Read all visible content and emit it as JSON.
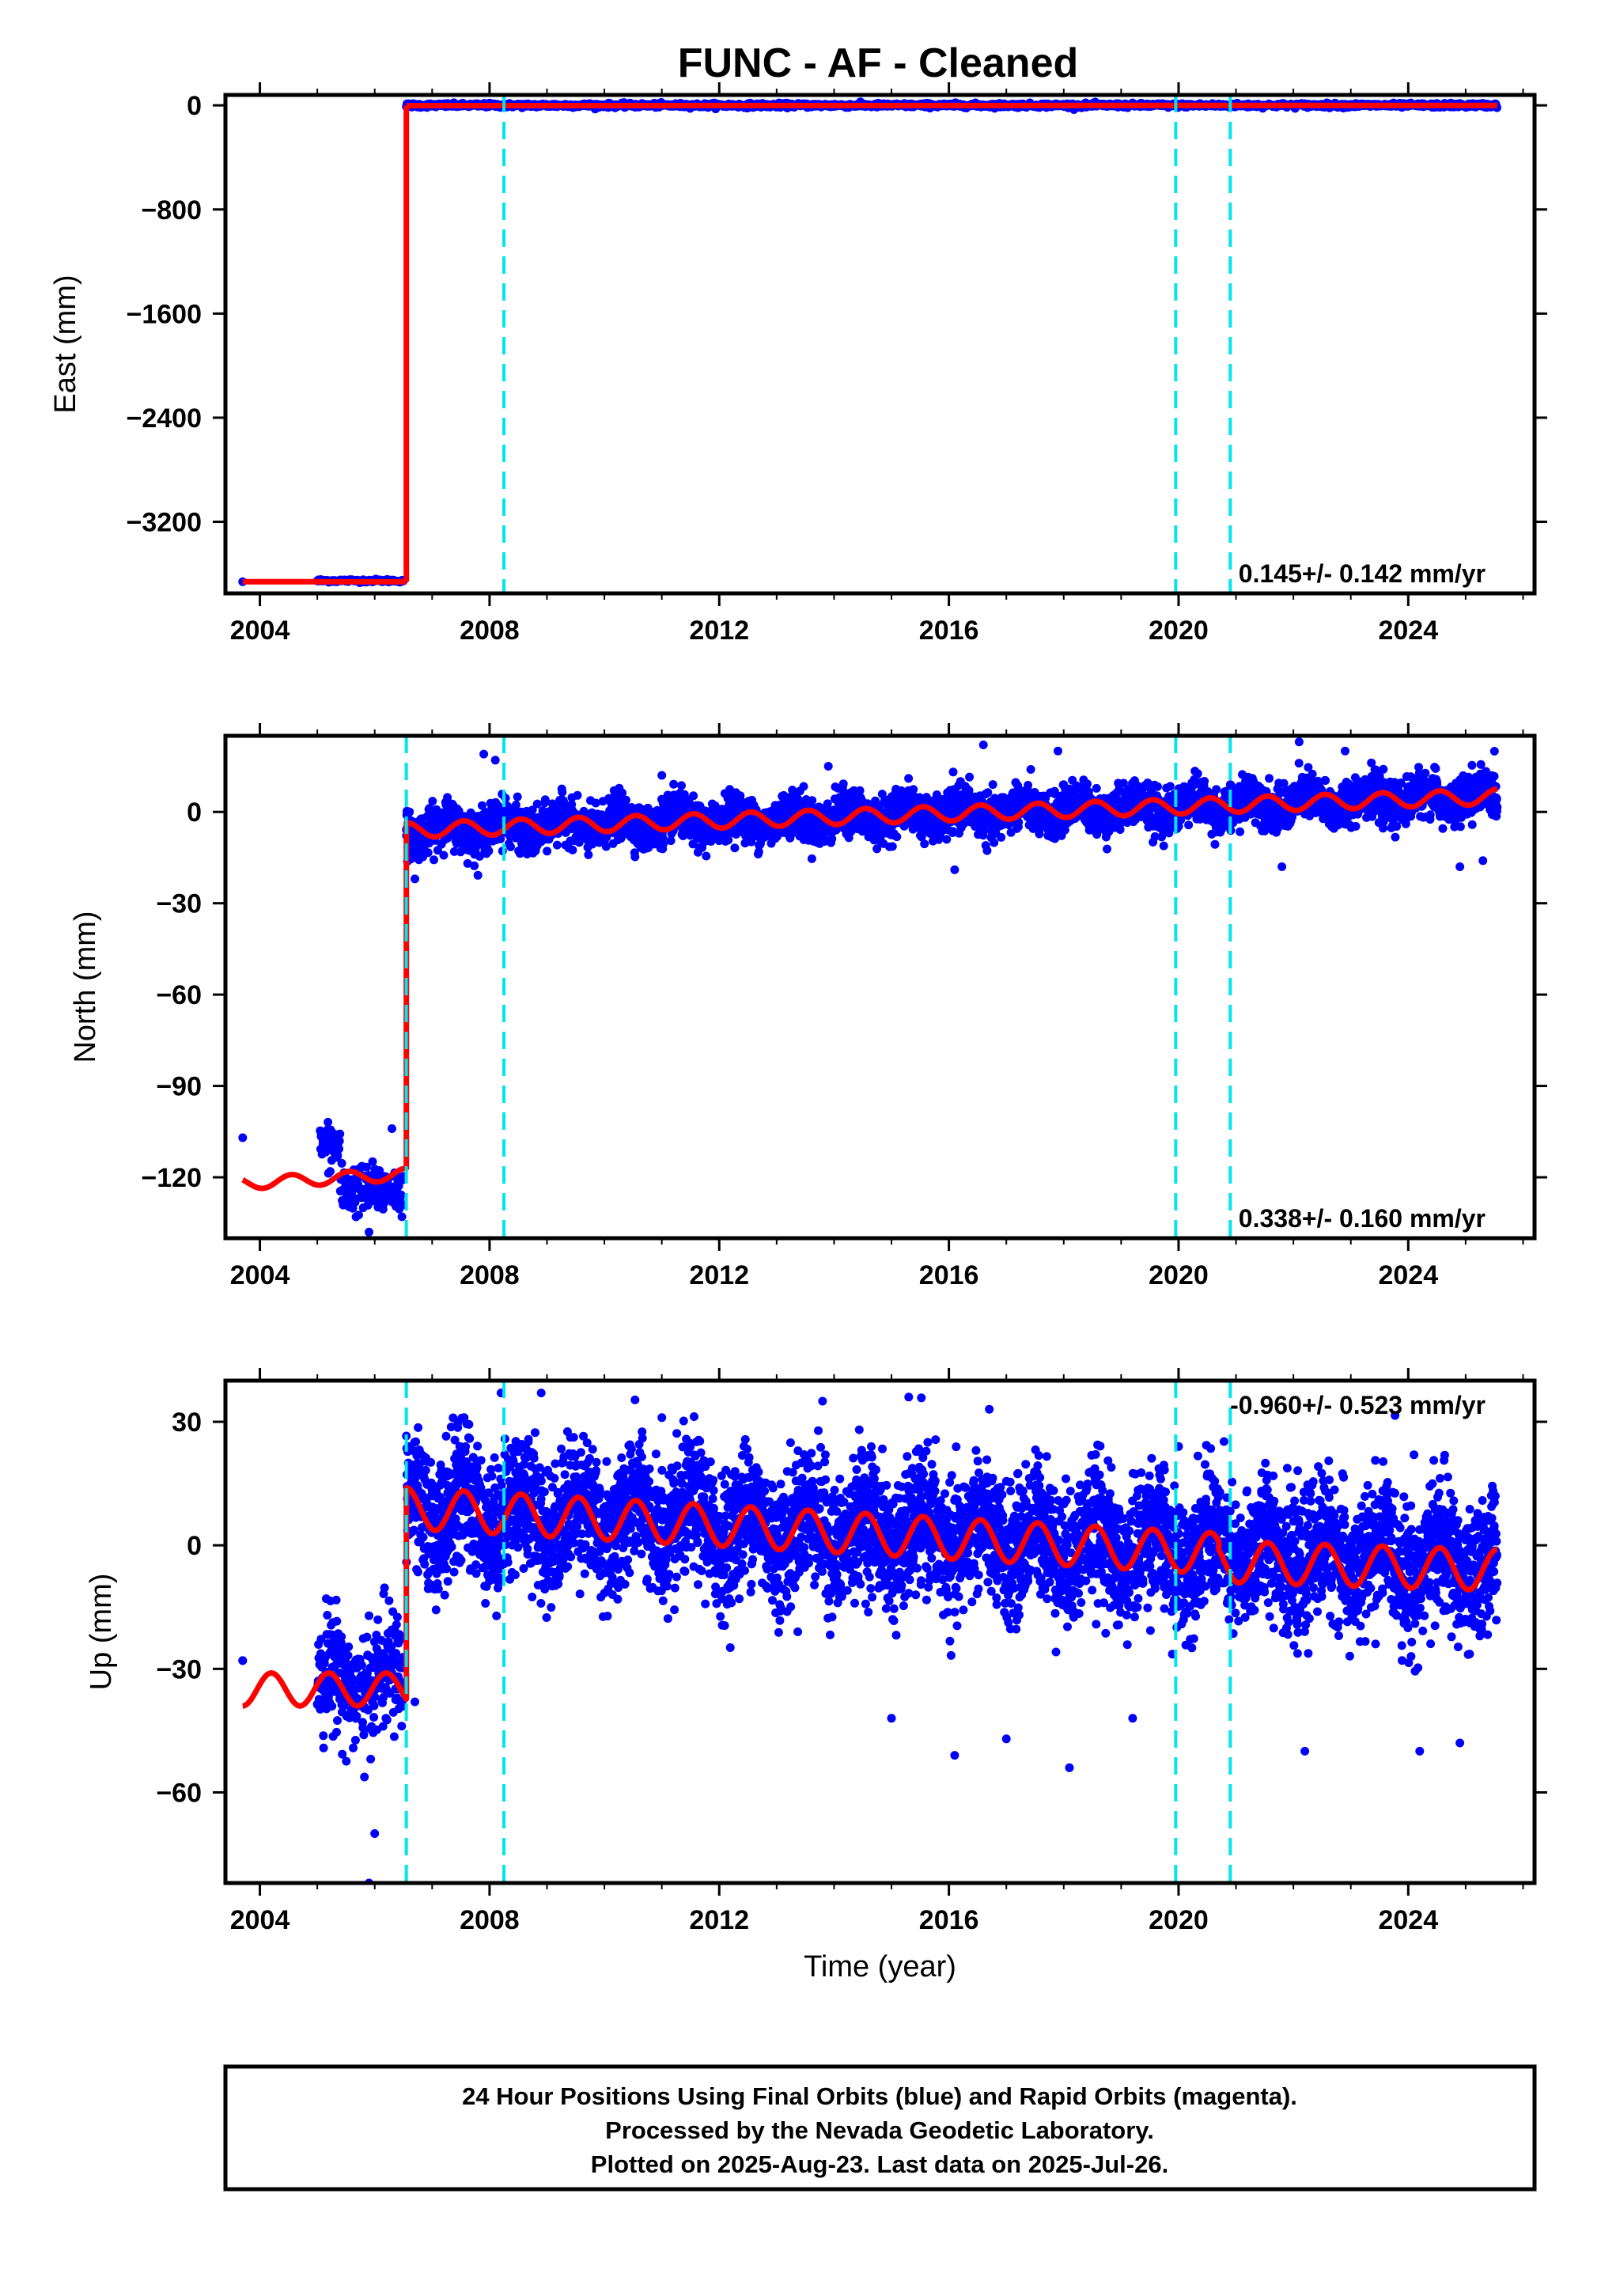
{
  "title": "FUNC  - AF - Cleaned",
  "colors": {
    "data": "#0000ff",
    "model": "#ff0000",
    "breaks": "#00e5ee",
    "frame": "#000000"
  },
  "footer": {
    "line1": "24 Hour Positions Using Final Orbits (blue) and Rapid Orbits (magenta).",
    "line2": "Processed by the Nevada Geodetic Laboratory.",
    "line3": "Plotted on 2025-Aug-23. Last data on 2025-Jul-26."
  },
  "chart_data": [
    {
      "type": "scatter",
      "name": "East",
      "ylabel": "East (mm)",
      "xlabel": "",
      "xlim": [
        2003.4,
        2026.2
      ],
      "ylim": [
        -3750,
        80
      ],
      "xticks": [
        2004,
        2008,
        2012,
        2016,
        2020,
        2024
      ],
      "yticks": [
        0,
        -800,
        -1600,
        -2400,
        -3200
      ],
      "rate_label": "0.145+/- 0.142 mm/yr",
      "rate_position": "bottom-right",
      "breaks": [
        2008.25,
        2019.95,
        2020.9
      ],
      "model": {
        "segments": [
          {
            "x": [
              2003.7,
              2006.55
            ],
            "y": [
              -3660,
              -3660
            ]
          },
          {
            "x": [
              2006.55,
              2006.55
            ],
            "y": [
              -3660,
              0
            ]
          },
          {
            "x": [
              2006.55,
              2025.55
            ],
            "y": [
              -2,
              0
            ]
          }
        ],
        "annual_amplitude": 0
      },
      "points": {
        "pre": [
          [
            2003.7,
            -3660
          ],
          [
            2005.1,
            -3650
          ],
          [
            2005.3,
            -3655
          ],
          [
            2005.5,
            -3650
          ],
          [
            2005.7,
            -3652
          ],
          [
            2005.9,
            -3648
          ],
          [
            2006.1,
            -3650
          ],
          [
            2006.3,
            -3655
          ]
        ],
        "post_range": [
          2006.55,
          2025.55
        ],
        "post_level": 0,
        "scatter_mm": 8
      }
    },
    {
      "type": "scatter",
      "name": "North",
      "ylabel": "North (mm)",
      "xlabel": "",
      "xlim": [
        2003.4,
        2026.2
      ],
      "ylim": [
        -140,
        25
      ],
      "xticks": [
        2004,
        2008,
        2012,
        2016,
        2020,
        2024
      ],
      "yticks": [
        0,
        -30,
        -60,
        -90,
        -120
      ],
      "rate_label": "0.338+/- 0.160 mm/yr",
      "rate_position": "bottom-right",
      "breaks": [
        2006.55,
        2008.25,
        2019.95,
        2020.9
      ],
      "model": {
        "pre": {
          "x0": 2003.7,
          "x1": 2006.55,
          "y0": -122,
          "y1": -119,
          "amp": 2
        },
        "post": {
          "x0": 2006.55,
          "x1": 2025.55,
          "y0": -6,
          "y1": 5,
          "amp": 2.5
        }
      },
      "points": {
        "pre_clusters": [
          [
            2003.7,
            -107
          ],
          [
            2005.1,
            -108
          ],
          [
            2005.3,
            -112
          ],
          [
            2005.6,
            -125
          ],
          [
            2005.8,
            -130
          ],
          [
            2006.0,
            -127
          ],
          [
            2006.2,
            -126
          ],
          [
            2006.3,
            -104
          ],
          [
            2005.9,
            -138
          ]
        ],
        "post_range": [
          2006.55,
          2025.55
        ],
        "post_trend": [
          -6,
          5
        ],
        "scatter_mm": 5,
        "outliers": [
          [
            2006.7,
            -22
          ],
          [
            2007.9,
            19
          ],
          [
            2008.1,
            17
          ],
          [
            2011.0,
            12
          ],
          [
            2013.9,
            15
          ],
          [
            2016.6,
            22
          ],
          [
            2017.9,
            20
          ],
          [
            2021.8,
            -18
          ],
          [
            2022.1,
            23
          ],
          [
            2022.9,
            20
          ],
          [
            2024.9,
            -18
          ],
          [
            2025.3,
            -16
          ],
          [
            2016.1,
            -19
          ]
        ]
      }
    },
    {
      "type": "scatter",
      "name": "Up",
      "ylabel": "Up (mm)",
      "xlabel": "Time (year)",
      "xlim": [
        2003.4,
        2026.2
      ],
      "ylim": [
        -82,
        40
      ],
      "xticks": [
        2004,
        2008,
        2012,
        2016,
        2020,
        2024
      ],
      "yticks": [
        30,
        0,
        -30,
        -60
      ],
      "rate_label": "-0.960+/- 0.523 mm/yr",
      "rate_position": "top-right",
      "breaks": [
        2006.55,
        2008.25,
        2019.95,
        2020.9
      ],
      "model": {
        "pre": {
          "x0": 2003.7,
          "x1": 2006.55,
          "y0": -35,
          "y1": -35,
          "amp": 4
        },
        "post1": {
          "x0": 2006.55,
          "x1": 2020.7,
          "y0": 9,
          "y1": -2,
          "amp": 5
        },
        "post2": {
          "x0": 2020.7,
          "x1": 2025.55,
          "y0": -4,
          "y1": -6,
          "amp": 5
        }
      },
      "points": {
        "pre_range": [
          2005.0,
          2006.5
        ],
        "pre_level": -33,
        "post_range": [
          2006.55,
          2025.55
        ],
        "post_trend": [
          9,
          -5
        ],
        "scatter_mm": 8,
        "outliers": [
          [
            2003.7,
            -28
          ],
          [
            2005.9,
            -82
          ],
          [
            2006.0,
            -70
          ],
          [
            2006.7,
            -38
          ],
          [
            2008.2,
            37
          ],
          [
            2008.9,
            37
          ],
          [
            2011.0,
            31
          ],
          [
            2015.3,
            36
          ],
          [
            2013.8,
            35
          ],
          [
            2016.1,
            -51
          ],
          [
            2017.0,
            -47
          ],
          [
            2018.1,
            -54
          ],
          [
            2019.2,
            -42
          ],
          [
            2015.0,
            -42
          ],
          [
            2022.2,
            -50
          ],
          [
            2024.2,
            -50
          ],
          [
            2024.9,
            -48
          ],
          [
            2024.1,
            22
          ],
          [
            2020.0,
            24
          ]
        ]
      }
    }
  ]
}
